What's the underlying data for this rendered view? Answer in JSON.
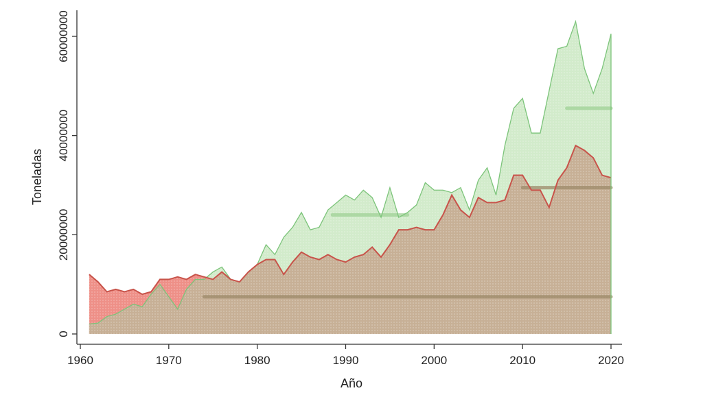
{
  "chart_data": {
    "type": "area",
    "title": "",
    "xlabel": "Año",
    "ylabel": "Toneladas",
    "xlim": [
      1961,
      2020
    ],
    "ylim": [
      0,
      60000000
    ],
    "xticks": [
      1960,
      1970,
      1980,
      1990,
      2000,
      2010,
      2020
    ],
    "xtick_labels": [
      "1960",
      "1970",
      "1980",
      "1990",
      "2000",
      "2010",
      "2020"
    ],
    "yticks": [
      0,
      20000000,
      40000000,
      60000000
    ],
    "ytick_labels": [
      "0",
      "20000000",
      "40000000",
      "60000000"
    ],
    "grid": false,
    "legend": "none",
    "x": [
      1961,
      1962,
      1963,
      1964,
      1965,
      1966,
      1967,
      1968,
      1969,
      1970,
      1971,
      1972,
      1973,
      1974,
      1975,
      1976,
      1977,
      1978,
      1979,
      1980,
      1981,
      1982,
      1983,
      1984,
      1985,
      1986,
      1987,
      1988,
      1989,
      1990,
      1991,
      1992,
      1993,
      1994,
      1995,
      1996,
      1997,
      1998,
      1999,
      2000,
      2001,
      2002,
      2003,
      2004,
      2005,
      2006,
      2007,
      2008,
      2009,
      2010,
      2011,
      2012,
      2013,
      2014,
      2015,
      2016,
      2017,
      2018,
      2019,
      2020
    ],
    "series": [
      {
        "color": "#7cc47a",
        "fill": "#d2ebcb",
        "values": [
          2000000,
          2200000,
          3500000,
          4000000,
          5000000,
          6000000,
          5500000,
          8000000,
          10000000,
          7500000,
          5000000,
          9000000,
          11000000,
          11000000,
          12500000,
          13500000,
          11000000,
          10500000,
          12500000,
          14000000,
          18000000,
          16000000,
          19500000,
          21500000,
          24500000,
          21000000,
          21500000,
          25000000,
          26500000,
          28000000,
          27000000,
          29000000,
          27500000,
          23500000,
          29500000,
          23500000,
          24500000,
          26000000,
          30500000,
          29000000,
          29000000,
          28500000,
          29500000,
          25000000,
          31000000,
          33500000,
          28000000,
          38000000,
          45500000,
          47500000,
          40500000,
          40500000,
          49000000,
          57500000,
          58000000,
          63000000,
          53500000,
          48500000,
          53500000,
          60500000
        ]
      },
      {
        "color": "#c8534a",
        "fill": "#ee9088",
        "values": [
          12000000,
          10500000,
          8500000,
          9000000,
          8500000,
          9000000,
          8000000,
          8500000,
          11000000,
          11000000,
          11500000,
          11000000,
          12000000,
          11500000,
          11000000,
          12500000,
          11000000,
          10500000,
          12500000,
          14000000,
          15000000,
          15000000,
          12000000,
          14500000,
          16500000,
          15500000,
          15000000,
          16000000,
          15000000,
          14500000,
          15500000,
          16000000,
          17500000,
          15500000,
          18000000,
          21000000,
          21000000,
          21500000,
          21000000,
          21000000,
          24000000,
          28000000,
          25000000,
          23500000,
          27500000,
          26500000,
          26500000,
          27000000,
          32000000,
          32000000,
          29000000,
          29000000,
          25500000,
          31000000,
          33500000,
          38000000,
          37000000,
          35500000,
          32000000,
          31500000
        ]
      }
    ],
    "overlap_fill": "#c7b096",
    "reference_lines": [
      {
        "y": 7500000,
        "from": 1974,
        "to": 2020,
        "color": "#9c8a68"
      },
      {
        "y": 24000000,
        "from": 1988.5,
        "to": 1997,
        "color": "#9fd196"
      },
      {
        "y": 29500000,
        "from": 2010,
        "to": 2020,
        "color": "#9c8a68"
      },
      {
        "y": 45500000,
        "from": 2015,
        "to": 2020,
        "color": "#9fd196"
      }
    ]
  }
}
